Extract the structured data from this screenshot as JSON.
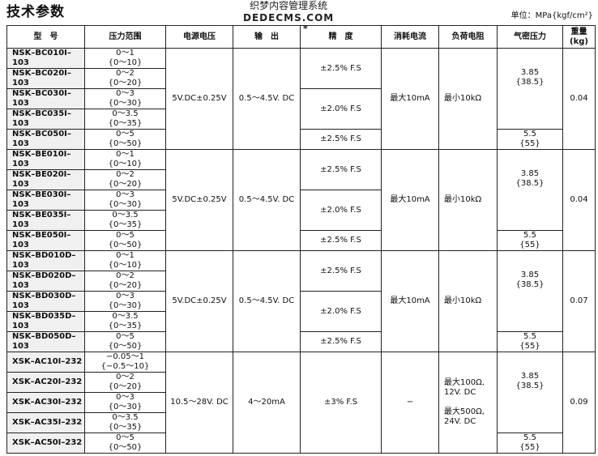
{
  "title": "技术参数",
  "unit": "单位：MPa{kgf/cm²}",
  "headers": [
    "型　号",
    "压力范围",
    "电源电压",
    "输　出",
    "精　度",
    "消耗电流",
    "负荷电阻",
    "气密压力",
    "重量\n(kg)"
  ],
  "accuracy_note_mark": "*",
  "groups": [
    {
      "models": [
        "NSK–BC010I–103",
        "NSK–BC020I–103",
        "NSK–BC030I–103",
        "NSK–BC035I–103",
        "NSK–BC050I–103"
      ],
      "ranges": [
        "0〜1\n{0〜10}",
        "0〜2\n{0〜20}",
        "0〜3\n{0〜30}",
        "0〜3.5\n{0〜35}",
        "0〜5\n{0〜50}"
      ],
      "voltage": "5V.DC±0.25V",
      "output": "0.5〜4.5V. DC",
      "accuracy": [
        {
          "text": "±2.5% F.S",
          "rows": 2
        },
        {
          "text": "±2.0% F.S",
          "rows": 2
        },
        {
          "text": "±2.5% F.S",
          "rows": 1
        }
      ],
      "current": "最大10mA",
      "load": "最小10kΩ",
      "airtight": [
        {
          "text": "3.85\n{38.5}",
          "rows": 4
        },
        {
          "text": "5.5\n{55}",
          "rows": 1
        }
      ],
      "weight": "0.04"
    },
    {
      "models": [
        "NSK–BE010I–103",
        "NSK–BE020I–103",
        "NSK–BE030I–103",
        "NSK–BE035I–103",
        "NSK–BE050I–103"
      ],
      "ranges": [
        "0〜1\n{0〜10}",
        "0〜2\n{0〜20}",
        "0〜3\n{0〜30}",
        "0〜3.5\n{0〜35}",
        "0〜5\n{0〜50}"
      ],
      "voltage": "5V.DC±0.25V",
      "output": "0.5〜4.5V. DC",
      "accuracy": [
        {
          "text": "±2.5% F.S",
          "rows": 2
        },
        {
          "text": "±2.0% F.S",
          "rows": 2
        },
        {
          "text": "±2.5% F.S",
          "rows": 1
        }
      ],
      "current": "最大10mA",
      "load": "最小10kΩ",
      "airtight": [
        {
          "text": "3.85\n{38.5}",
          "rows": 4
        },
        {
          "text": "5.5\n{55}",
          "rows": 1
        }
      ],
      "weight": "0.04"
    },
    {
      "models": [
        "NSK–BD010D–103",
        "NSK–BD020D–103",
        "NSK–BD030D–103",
        "NSK–BD035D–103",
        "NSK–BD050D–103"
      ],
      "ranges": [
        "0〜1\n{0〜10}",
        "0〜2\n{0〜20}",
        "0〜3\n{0〜30}",
        "0〜3.5\n{0〜35}",
        "0〜5\n{0〜50}"
      ],
      "voltage": "5V.DC±0.25V",
      "output": "0.5〜4.5V. DC",
      "accuracy": [
        {
          "text": "±2.5% F.S",
          "rows": 2
        },
        {
          "text": "±2.0% F.S",
          "rows": 2
        },
        {
          "text": "±2.5% F.S",
          "rows": 1
        }
      ],
      "current": "最大10mA",
      "load": "最小10kΩ",
      "airtight": [
        {
          "text": "3.85\n{38.5}",
          "rows": 4
        },
        {
          "text": "5.5\n{55}",
          "rows": 1
        }
      ],
      "weight": "0.07"
    },
    {
      "models": [
        "XSK–AC10I–232",
        "XSK–AC20I–232",
        "XSK–AC30I–232",
        "XSK–AC35I–232",
        "XSK–AC50I–232"
      ],
      "ranges": [
        "−0.05〜1\n{−0.5〜10}",
        "0〜2\n{0〜20}",
        "0〜3\n{0〜30}",
        "0〜3.5\n{0〜35}",
        "0〜5\n{0〜50}"
      ],
      "voltage": "10.5〜28V. DC",
      "output": "4〜20mA",
      "accuracy": [
        {
          "text": "±3% F.S",
          "rows": 5
        }
      ],
      "current": "−",
      "load": "最大100Ω,\n12V. DC\n\n最大500Ω,\n24V. DC",
      "airtight": [
        {
          "text": "3.85\n{38.5}",
          "rows": 4
        },
        {
          "text": "5.5\n{55}",
          "rows": 1
        }
      ],
      "weight": "0.09"
    }
  ],
  "watermark": {
    "line1": "织梦内容管理系统",
    "line2": "DEDECMS.COM"
  }
}
